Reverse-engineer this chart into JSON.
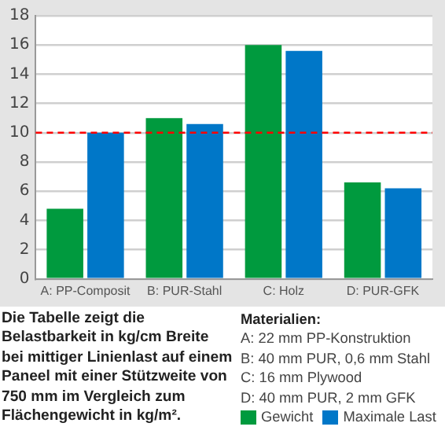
{
  "chart_data": {
    "type": "bar",
    "categories": [
      "A: PP-Composit",
      "B: PUR-Stahl",
      "C: Holz",
      "D: PUR-GFK"
    ],
    "series": [
      {
        "name": "Gewicht",
        "color": "#009a3e",
        "values": [
          4.8,
          11,
          16,
          6.6
        ]
      },
      {
        "name": "Maximale Last",
        "color": "#0077c8",
        "values": [
          10,
          10.6,
          15.6,
          6.2
        ]
      }
    ],
    "ylim": [
      0,
      18
    ],
    "yticks": [
      0,
      2,
      4,
      6,
      8,
      10,
      12,
      14,
      16,
      18
    ],
    "grid": "y",
    "legend": "bottom right",
    "ref_lines": [
      {
        "axis": "y",
        "value": 10,
        "color": "#ff0000",
        "line_style": "dashed"
      }
    ],
    "annotations": [
      "Die Tabelle zeigt die Belastbarkeit in kg/cm Breite bei mittiger Linienlast auf einem Paneel mit einer Stützweite von 750 mm im Vergleich zum Flächengewicht in kg/m².",
      "Materialien:",
      "A: 22 mm PP-Konstruktion",
      "B: 40 mm PUR, 0,6 mm Stahl",
      "C: 16 mm Plywood",
      "D: 40 mm PUR, 2 mm GFK"
    ]
  }
}
